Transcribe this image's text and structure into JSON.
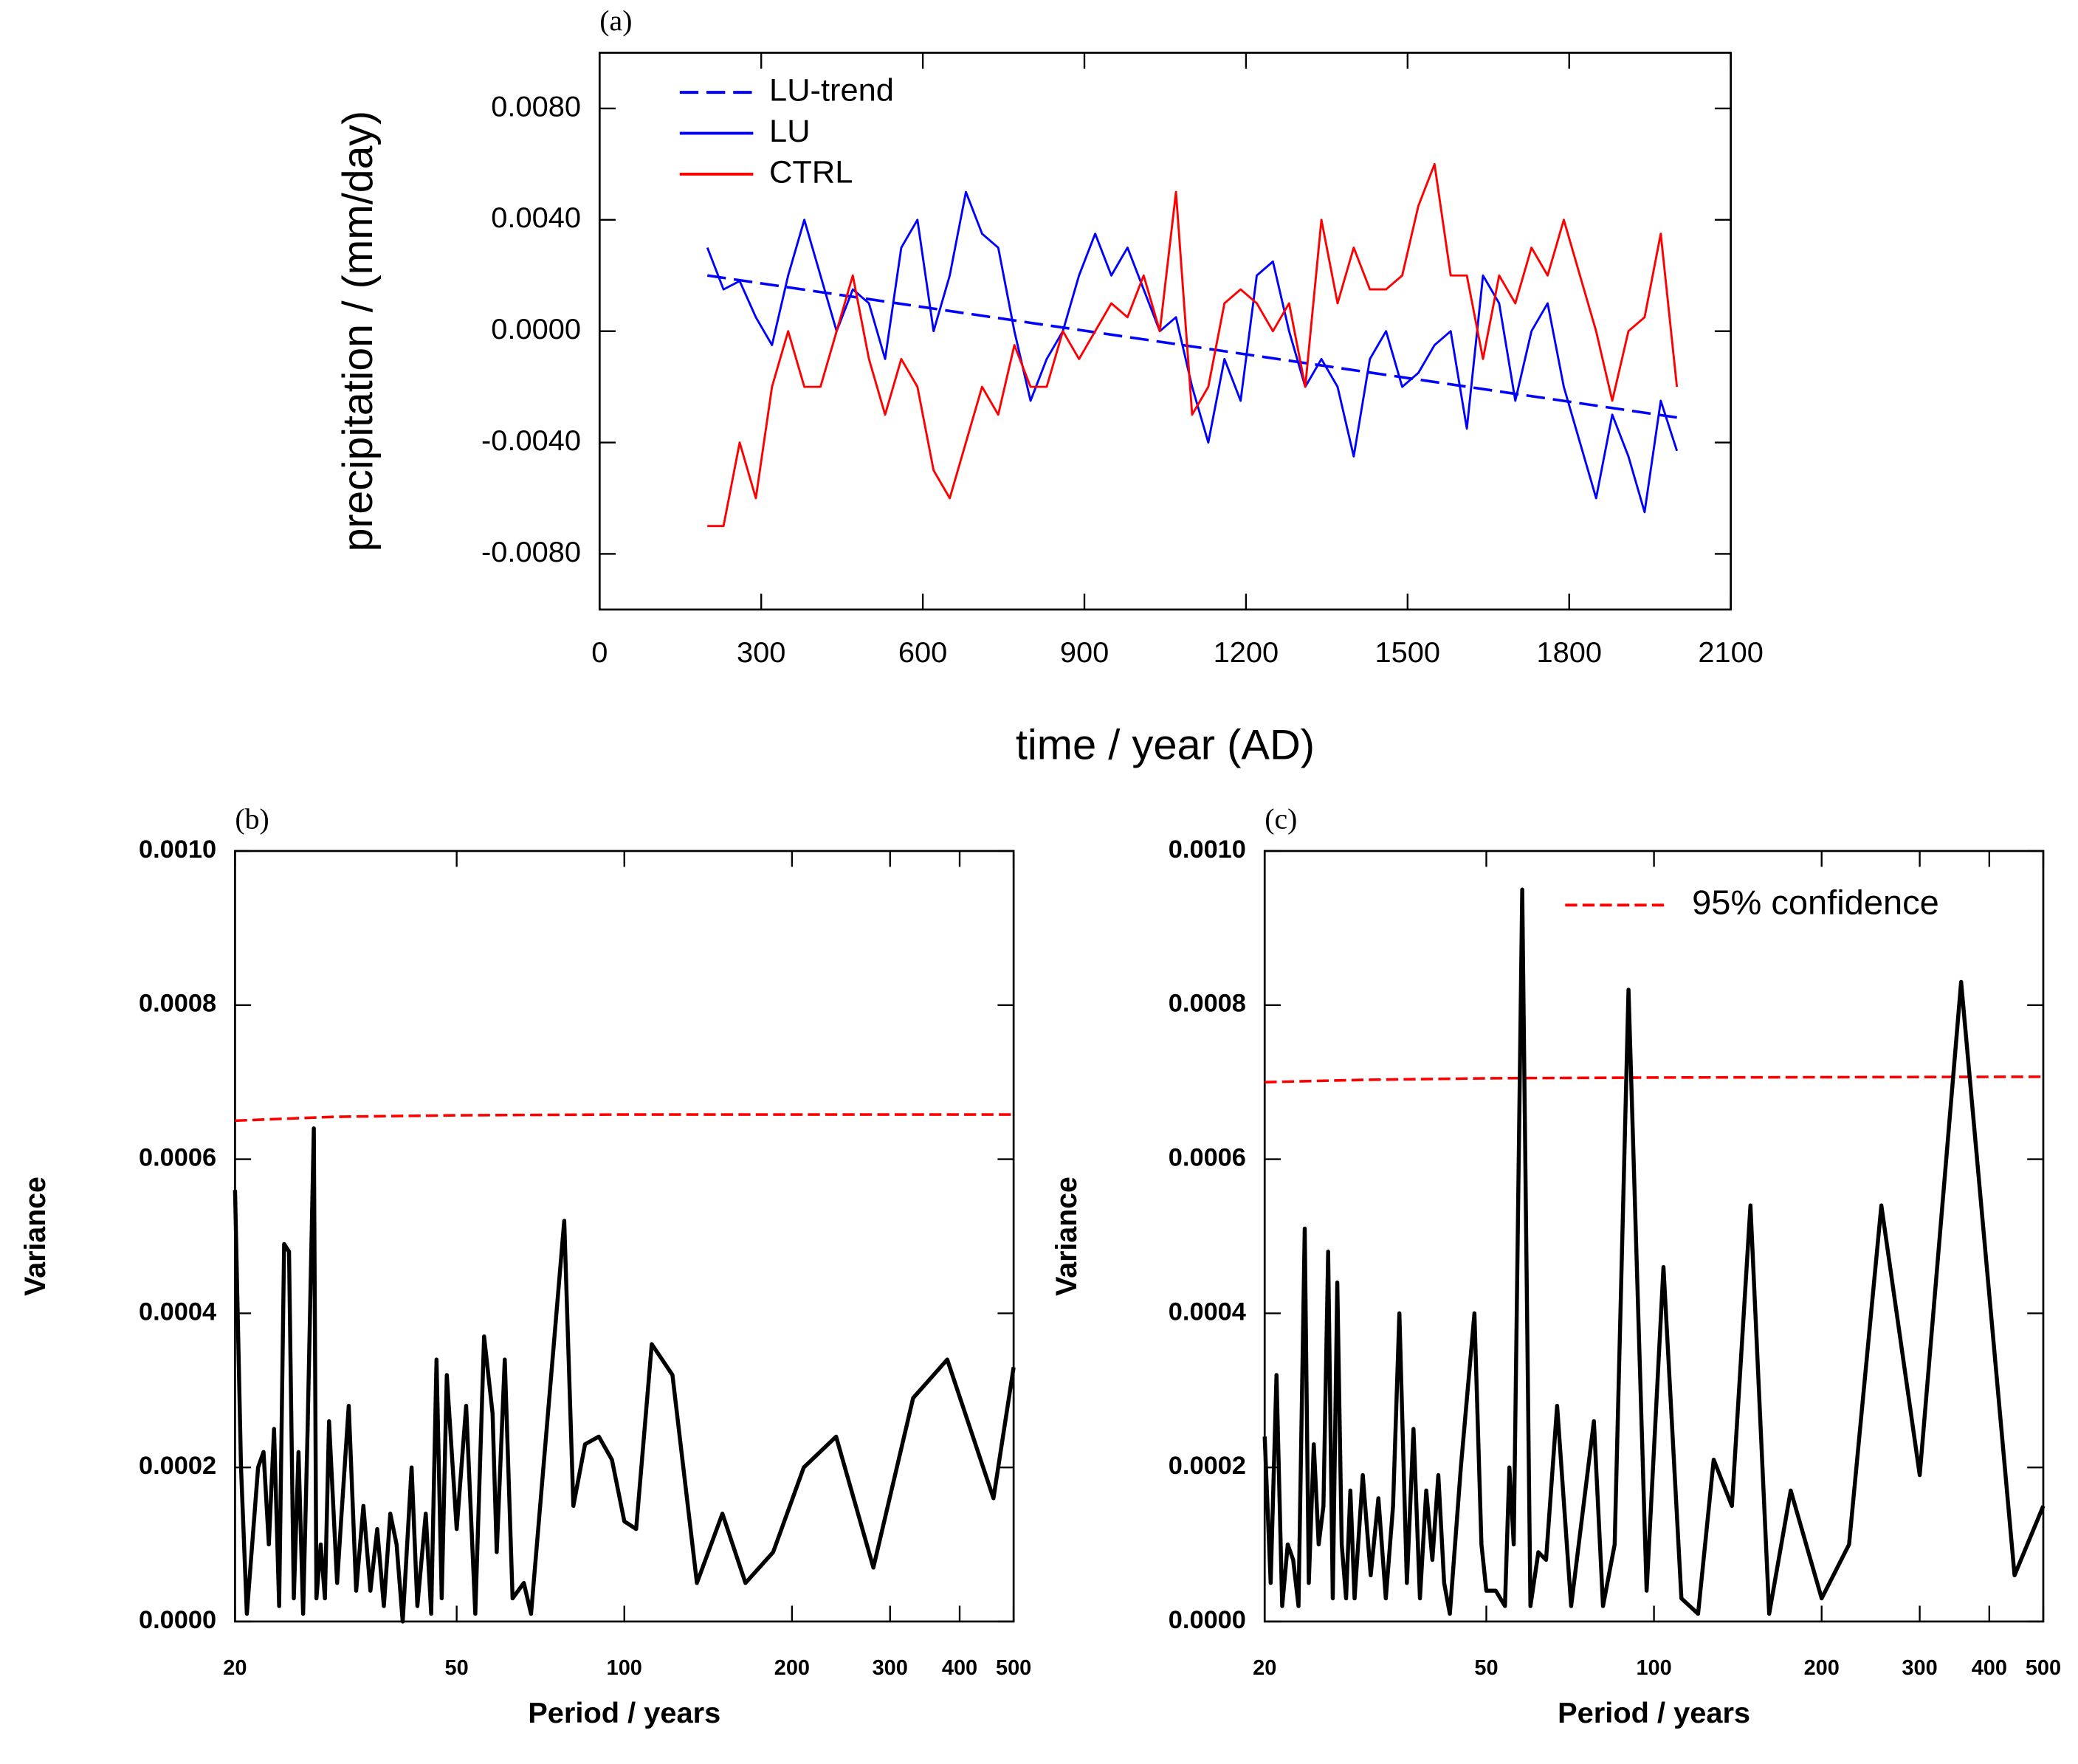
{
  "chart_data": [
    {
      "type": "line",
      "title": "(a)",
      "xlabel": "time / year (AD)",
      "ylabel": "precipitation / (mm/day)",
      "xlim": [
        0,
        2100
      ],
      "xticks": [
        0,
        300,
        600,
        900,
        1200,
        1500,
        1800,
        2100
      ],
      "ylim": [
        -0.01,
        0.01
      ],
      "yticks": [
        {
          "value": -0.008,
          "label": "-0.0080"
        },
        {
          "value": -0.004,
          "label": "-0.0040"
        },
        {
          "value": 0,
          "label": "0.0000"
        },
        {
          "value": 0.004,
          "label": "0.0040"
        },
        {
          "value": 0.008,
          "label": "0.0080"
        }
      ],
      "legend": "upper left",
      "x": [
        200,
        230,
        260,
        290,
        320,
        350,
        380,
        410,
        440,
        470,
        500,
        530,
        560,
        590,
        620,
        650,
        680,
        710,
        740,
        770,
        800,
        830,
        860,
        890,
        920,
        950,
        980,
        1010,
        1040,
        1070,
        1100,
        1130,
        1160,
        1190,
        1220,
        1250,
        1280,
        1310,
        1340,
        1370,
        1400,
        1430,
        1460,
        1490,
        1520,
        1550,
        1580,
        1610,
        1640,
        1670,
        1700,
        1730,
        1760,
        1790,
        1820,
        1850,
        1880,
        1910,
        1940,
        1970,
        2000
      ],
      "series": [
        {
          "name": "LU-trend",
          "color": "#0000ff",
          "linestyle": "dashed",
          "x": [
            200,
            2000
          ],
          "values": [
            0.002,
            -0.0031
          ]
        },
        {
          "name": "LU",
          "color": "#0000ff",
          "linestyle": "solid",
          "values": [
            0.003,
            0.0015,
            0.0018,
            0.0005,
            -0.0005,
            0.002,
            0.004,
            0.002,
            0.0,
            0.0015,
            0.001,
            -0.001,
            0.003,
            0.004,
            0.0,
            0.002,
            0.005,
            0.0035,
            0.003,
            0.0,
            -0.0025,
            -0.001,
            0.0,
            0.002,
            0.0035,
            0.002,
            0.003,
            0.0015,
            0.0,
            0.0005,
            -0.002,
            -0.004,
            -0.001,
            -0.0025,
            0.002,
            0.0025,
            0.0,
            -0.002,
            -0.001,
            -0.002,
            -0.0045,
            -0.001,
            0.0,
            -0.002,
            -0.0015,
            -0.0005,
            0.0,
            -0.0035,
            0.002,
            0.001,
            -0.0025,
            0.0,
            0.001,
            -0.002,
            -0.004,
            -0.006,
            -0.003,
            -0.0045,
            -0.0065,
            -0.0025,
            -0.0043
          ]
        },
        {
          "name": "CTRL",
          "color": "#ff0000",
          "linestyle": "solid",
          "values": [
            -0.007,
            -0.007,
            -0.004,
            -0.006,
            -0.002,
            0.0,
            -0.002,
            -0.002,
            0.0,
            0.002,
            -0.001,
            -0.003,
            -0.001,
            -0.002,
            -0.005,
            -0.006,
            -0.004,
            -0.002,
            -0.003,
            -0.0005,
            -0.002,
            -0.002,
            0.0,
            -0.001,
            0.0,
            0.001,
            0.0005,
            0.002,
            0.0,
            0.005,
            -0.003,
            -0.002,
            0.001,
            0.0015,
            0.001,
            0.0,
            0.001,
            -0.002,
            0.004,
            0.001,
            0.003,
            0.0015,
            0.0015,
            0.002,
            0.0045,
            0.006,
            0.002,
            0.002,
            -0.001,
            0.002,
            0.001,
            0.003,
            0.002,
            0.004,
            0.002,
            0.0,
            -0.0025,
            0.0,
            0.0005,
            0.0035,
            -0.002
          ]
        }
      ]
    },
    {
      "type": "line",
      "title": "(b)",
      "xlabel": "Period / years",
      "ylabel": "Variance",
      "xscale": "log",
      "xlim": [
        20,
        500
      ],
      "xticks": [
        20,
        50,
        100,
        200,
        300,
        400,
        500
      ],
      "ylim": [
        0,
        0.001
      ],
      "yticks": [
        {
          "value": 0,
          "label": "0.0000"
        },
        {
          "value": 0.0002,
          "label": "0.0002"
        },
        {
          "value": 0.0004,
          "label": "0.0004"
        },
        {
          "value": 0.0006,
          "label": "0.0006"
        },
        {
          "value": 0.0008,
          "label": "0.0008"
        },
        {
          "value": 0.001,
          "label": "0.0010"
        }
      ],
      "series": [
        {
          "color": "#ff0000",
          "linestyle": "dashed",
          "x": [
            20,
            30,
            50,
            100,
            500
          ],
          "values": [
            0.00065,
            0.000655,
            0.000657,
            0.000658,
            0.000658
          ]
        },
        {
          "color": "#000000",
          "linestyle": "solid",
          "x": [
            20,
            20.5,
            21,
            22,
            22.5,
            23,
            23.5,
            24,
            24.5,
            25,
            25.5,
            26,
            26.5,
            27,
            27.7,
            28,
            28.5,
            29,
            29.5,
            30.5,
            31,
            32,
            33,
            34,
            35,
            36,
            37,
            38,
            39,
            40,
            41.5,
            42.5,
            44,
            45,
            46,
            47,
            48,
            50,
            52,
            54,
            56,
            58,
            59,
            61,
            63,
            66,
            68,
            78,
            81,
            85,
            90,
            95,
            100,
            105,
            112,
            122,
            135,
            150,
            165,
            185,
            210,
            240,
            280,
            330,
            380,
            460,
            500
          ],
          "values": [
            0.00056,
            0.0002,
            1e-05,
            0.0002,
            0.00022,
            0.0001,
            0.00025,
            2e-05,
            0.00049,
            0.00048,
            3e-05,
            0.00022,
            1e-05,
            0.00025,
            0.00064,
            3e-05,
            0.0001,
            3e-05,
            0.00026,
            5e-05,
            0.00013,
            0.00028,
            4e-05,
            0.00015,
            4e-05,
            0.00012,
            2e-05,
            0.00014,
            0.0001,
            0.0,
            0.0002,
            2e-05,
            0.00014,
            1e-05,
            0.00034,
            3e-05,
            0.00032,
            0.00012,
            0.00028,
            1e-05,
            0.00037,
            0.00027,
            9e-05,
            0.00034,
            3e-05,
            5e-05,
            1e-05,
            0.00052,
            0.00015,
            0.00023,
            0.00024,
            0.00021,
            0.00013,
            0.00012,
            0.00036,
            0.00032,
            5e-05,
            0.00014,
            5e-05,
            9e-05,
            0.0002,
            0.00024,
            7e-05,
            0.00029,
            0.00034,
            0.00016,
            0.00033
          ]
        }
      ]
    },
    {
      "type": "line",
      "title": "(c)",
      "xlabel": "Period / years",
      "ylabel": "Variance",
      "xscale": "log",
      "xlim": [
        20,
        500
      ],
      "xticks": [
        20,
        50,
        100,
        200,
        300,
        400,
        500
      ],
      "ylim": [
        0,
        0.001
      ],
      "yticks": [
        {
          "value": 0,
          "label": "0.0000"
        },
        {
          "value": 0.0002,
          "label": "0.0002"
        },
        {
          "value": 0.0004,
          "label": "0.0004"
        },
        {
          "value": 0.0006,
          "label": "0.0006"
        },
        {
          "value": 0.0008,
          "label": "0.0008"
        },
        {
          "value": 0.001,
          "label": "0.0010"
        }
      ],
      "legend": "upper right",
      "series": [
        {
          "name": "95% confidence",
          "color": "#ff0000",
          "linestyle": "dashed",
          "x": [
            20,
            30,
            50,
            100,
            500
          ],
          "values": [
            0.0007,
            0.000703,
            0.000705,
            0.000706,
            0.000707
          ]
        },
        {
          "color": "#000000",
          "linestyle": "solid",
          "x": [
            20,
            20.5,
            21,
            21.5,
            22,
            22.5,
            23,
            23.6,
            24,
            24.5,
            25,
            25.5,
            26,
            26.5,
            27,
            27.5,
            28,
            28.5,
            29,
            30,
            31,
            32,
            33,
            34,
            34.9,
            36,
            37,
            38,
            39,
            40,
            41,
            42,
            43,
            45,
            47.6,
            49,
            50,
            52,
            54,
            55,
            56,
            58,
            60,
            62,
            64,
            67,
            71,
            78,
            81,
            85,
            90,
            97,
            104,
            112,
            120,
            128,
            138,
            149,
            161,
            176,
            200,
            224,
            256,
            300,
            356,
            444,
            500
          ],
          "values": [
            0.00024,
            5e-05,
            0.00032,
            2e-05,
            0.0001,
            8e-05,
            2e-05,
            0.00051,
            5e-05,
            0.00023,
            0.0001,
            0.00015,
            0.00048,
            3e-05,
            0.00044,
            0.0001,
            3e-05,
            0.00017,
            3e-05,
            0.00019,
            6e-05,
            0.00016,
            3e-05,
            0.00015,
            0.0004,
            5e-05,
            0.00025,
            3e-05,
            0.00017,
            8e-05,
            0.00019,
            5e-05,
            1e-05,
            0.0002,
            0.0004,
            0.0001,
            4e-05,
            4e-05,
            2e-05,
            0.0002,
            0.0001,
            0.00095,
            2e-05,
            9e-05,
            8e-05,
            0.00028,
            2e-05,
            0.00026,
            2e-05,
            0.0001,
            0.00082,
            4e-05,
            0.00046,
            3e-05,
            1e-05,
            0.00021,
            0.00015,
            0.00054,
            1e-05,
            0.00017,
            3e-05,
            0.0001,
            0.00054,
            0.00019,
            0.00083,
            6e-05,
            0.00015
          ]
        }
      ]
    }
  ]
}
